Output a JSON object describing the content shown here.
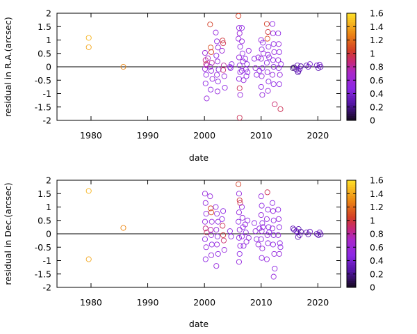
{
  "chart_data": [
    {
      "type": "scatter",
      "xlabel": "date",
      "ylabel": "residual in R.A.(arcsec)",
      "xlim": [
        1974,
        2024
      ],
      "ylim": [
        -2,
        2
      ],
      "xticks": [
        1980,
        1990,
        2000,
        2010,
        2020
      ],
      "yticks": [
        -2,
        -1.5,
        -1,
        -0.5,
        0,
        0.5,
        1,
        1.5,
        2
      ],
      "zero_line": true,
      "grid": false,
      "marker": "open-circle",
      "colorbar": {
        "min": 0,
        "max": 1.6,
        "ticks": [
          0,
          0.2,
          0.4,
          0.6,
          0.8,
          1,
          1.2,
          1.4,
          1.6
        ],
        "palette": "black-purple-red-yellow",
        "placement": "right"
      },
      "points": [
        [
          1979.6,
          1.08,
          1.45
        ],
        [
          1979.6,
          0.73,
          1.4
        ],
        [
          1985.7,
          0.0,
          1.3
        ],
        [
          2000.1,
          0.52,
          0.6
        ],
        [
          2000.2,
          0.25,
          0.85
        ],
        [
          2000.3,
          0.1,
          0.95
        ],
        [
          2000.1,
          -0.08,
          0.55
        ],
        [
          2000.3,
          -0.3,
          0.5
        ],
        [
          2000.2,
          -0.62,
          0.5
        ],
        [
          2000.4,
          -1.18,
          0.55
        ],
        [
          2000.4,
          0.05,
          0.75
        ],
        [
          2000.6,
          0.32,
          0.7
        ],
        [
          2001.0,
          1.58,
          1.05
        ],
        [
          2001.1,
          0.72,
          1.1
        ],
        [
          2001.2,
          0.55,
          1.05
        ],
        [
          2001.3,
          0.15,
          0.8
        ],
        [
          2001.0,
          0.0,
          0.6
        ],
        [
          2001.2,
          -0.15,
          0.55
        ],
        [
          2001.4,
          -0.45,
          0.55
        ],
        [
          2001.1,
          -0.85,
          0.5
        ],
        [
          2002.0,
          1.28,
          0.55
        ],
        [
          2002.2,
          0.95,
          0.5
        ],
        [
          2002.4,
          0.72,
          0.55
        ],
        [
          2002.1,
          0.42,
          0.5
        ],
        [
          2002.3,
          0.2,
          0.55
        ],
        [
          2002.5,
          -0.1,
          0.5
        ],
        [
          2002.2,
          -0.3,
          0.55
        ],
        [
          2002.4,
          -0.55,
          0.5
        ],
        [
          2002.3,
          -0.92,
          0.55
        ],
        [
          2003.2,
          0.98,
          1.0
        ],
        [
          2003.3,
          0.88,
          0.95
        ],
        [
          2003.1,
          0.6,
          0.6
        ],
        [
          2003.4,
          0.05,
          0.8
        ],
        [
          2003.3,
          -0.12,
          0.9
        ],
        [
          2003.5,
          -0.35,
          0.55
        ],
        [
          2003.6,
          -0.78,
          0.5
        ],
        [
          2004.5,
          0.0,
          0.5
        ],
        [
          2004.6,
          -0.05,
          0.45
        ],
        [
          2004.8,
          0.1,
          0.5
        ],
        [
          2006.0,
          1.9,
          1.05
        ],
        [
          2006.1,
          1.45,
          0.55
        ],
        [
          2006.2,
          1.25,
          0.6
        ],
        [
          2006.0,
          1.05,
          0.55
        ],
        [
          2006.3,
          0.75,
          0.5
        ],
        [
          2006.1,
          0.35,
          0.55
        ],
        [
          2006.2,
          0.05,
          0.5
        ],
        [
          2006.3,
          -0.2,
          0.55
        ],
        [
          2006.1,
          -0.45,
          0.5
        ],
        [
          2006.2,
          -0.8,
          0.95
        ],
        [
          2006.3,
          -1.05,
          0.55
        ],
        [
          2006.2,
          -1.9,
          0.95
        ],
        [
          2006.6,
          1.45,
          0.5
        ],
        [
          2006.6,
          0.95,
          0.55
        ],
        [
          2006.7,
          0.5,
          0.5
        ],
        [
          2006.8,
          0.2,
          0.55
        ],
        [
          2006.6,
          -0.15,
          0.5
        ],
        [
          2006.9,
          -0.5,
          0.55
        ],
        [
          2007.2,
          0.3,
          0.5
        ],
        [
          2007.3,
          -0.1,
          0.55
        ],
        [
          2007.4,
          -0.35,
          0.5
        ],
        [
          2007.5,
          0.1,
          0.45
        ],
        [
          2007.8,
          0.6,
          0.55
        ],
        [
          2007.6,
          -0.2,
          0.5
        ],
        [
          2008.8,
          0.3,
          0.5
        ],
        [
          2009.0,
          -0.05,
          0.55
        ],
        [
          2009.2,
          -0.3,
          0.5
        ],
        [
          2009.5,
          0.35,
          0.55
        ],
        [
          2009.7,
          -0.15,
          0.5
        ],
        [
          2010.0,
          1.0,
          0.55
        ],
        [
          2010.1,
          0.65,
          0.5
        ],
        [
          2010.0,
          0.3,
          0.55
        ],
        [
          2010.2,
          -0.05,
          0.5
        ],
        [
          2010.1,
          -0.35,
          0.55
        ],
        [
          2010.0,
          -0.75,
          0.5
        ],
        [
          2010.2,
          -1.05,
          0.55
        ],
        [
          2010.3,
          0.9,
          0.5
        ],
        [
          2010.4,
          0.5,
          0.55
        ],
        [
          2011.0,
          1.6,
          1.05
        ],
        [
          2011.2,
          1.3,
          1.0
        ],
        [
          2011.1,
          1.05,
          1.1
        ],
        [
          2011.3,
          0.75,
          0.5
        ],
        [
          2011.2,
          0.45,
          0.55
        ],
        [
          2011.0,
          0.15,
          0.5
        ],
        [
          2011.1,
          -0.2,
          0.55
        ],
        [
          2011.3,
          -0.55,
          0.5
        ],
        [
          2011.2,
          -0.9,
          0.55
        ],
        [
          2011.4,
          0.35,
          0.5
        ],
        [
          2012.0,
          1.6,
          0.5
        ],
        [
          2012.1,
          1.25,
          0.55
        ],
        [
          2012.2,
          0.85,
          0.5
        ],
        [
          2012.3,
          0.55,
          0.55
        ],
        [
          2012.1,
          0.25,
          0.5
        ],
        [
          2012.2,
          0.0,
          0.45
        ],
        [
          2012.0,
          -0.3,
          0.55
        ],
        [
          2012.2,
          -0.65,
          0.5
        ],
        [
          2012.4,
          -1.4,
          0.9
        ],
        [
          2013.0,
          1.25,
          0.5
        ],
        [
          2013.1,
          0.85,
          0.55
        ],
        [
          2013.2,
          0.55,
          0.5
        ],
        [
          2013.0,
          0.25,
          0.55
        ],
        [
          2013.1,
          -0.05,
          0.5
        ],
        [
          2013.3,
          -0.3,
          0.55
        ],
        [
          2013.2,
          -0.65,
          0.5
        ],
        [
          2013.4,
          -1.58,
          0.95
        ],
        [
          2013.5,
          0.1,
          0.5
        ],
        [
          2015.6,
          -0.05,
          0.15
        ],
        [
          2015.8,
          -0.02,
          0.2
        ],
        [
          2016.2,
          -0.1,
          0.3
        ],
        [
          2016.4,
          0.05,
          0.35
        ],
        [
          2016.6,
          -0.15,
          0.4
        ],
        [
          2016.8,
          -0.08,
          0.35
        ],
        [
          2017.0,
          0.02,
          0.3
        ],
        [
          2016.5,
          -0.2,
          0.25
        ],
        [
          2018.0,
          0.05,
          0.3
        ],
        [
          2018.3,
          0.0,
          0.35
        ],
        [
          2018.6,
          0.1,
          0.4
        ],
        [
          2019.8,
          0.05,
          0.35
        ],
        [
          2020.1,
          -0.05,
          0.3
        ],
        [
          2020.3,
          0.08,
          0.4
        ],
        [
          2020.5,
          0.0,
          0.35
        ]
      ]
    },
    {
      "type": "scatter",
      "xlabel": "date",
      "ylabel": "residual in Dec.(arcsec)",
      "xlim": [
        1974,
        2024
      ],
      "ylim": [
        -2,
        2
      ],
      "xticks": [
        1980,
        1990,
        2000,
        2010,
        2020
      ],
      "yticks": [
        -2,
        -1.5,
        -1,
        -0.5,
        0,
        0.5,
        1,
        1.5,
        2
      ],
      "zero_line": true,
      "grid": false,
      "marker": "open-circle",
      "colorbar": {
        "min": 0,
        "max": 1.6,
        "ticks": [
          0,
          0.2,
          0.4,
          0.6,
          0.8,
          1,
          1.2,
          1.4,
          1.6
        ],
        "palette": "black-purple-red-yellow",
        "placement": "right"
      },
      "points": [
        [
          1979.6,
          1.6,
          1.45
        ],
        [
          1979.6,
          -0.95,
          1.4
        ],
        [
          1985.7,
          0.22,
          1.3
        ],
        [
          2000.1,
          1.5,
          0.55
        ],
        [
          2000.2,
          1.15,
          0.55
        ],
        [
          2000.3,
          0.75,
          0.5
        ],
        [
          2000.1,
          0.45,
          0.55
        ],
        [
          2000.2,
          0.2,
          0.85
        ],
        [
          2000.4,
          0.05,
          0.95
        ],
        [
          2000.1,
          -0.2,
          0.5
        ],
        [
          2000.3,
          -0.5,
          0.55
        ],
        [
          2000.2,
          -0.95,
          0.5
        ],
        [
          2001.0,
          1.4,
          0.55
        ],
        [
          2001.1,
          0.95,
          1.05
        ],
        [
          2001.2,
          0.8,
          1.1
        ],
        [
          2001.3,
          0.45,
          0.55
        ],
        [
          2001.1,
          0.15,
          0.8
        ],
        [
          2001.2,
          -0.05,
          0.55
        ],
        [
          2001.3,
          -0.4,
          0.5
        ],
        [
          2001.2,
          -0.8,
          0.55
        ],
        [
          2002.0,
          1.0,
          0.5
        ],
        [
          2002.2,
          0.75,
          0.55
        ],
        [
          2002.4,
          0.45,
          0.5
        ],
        [
          2002.1,
          0.15,
          0.55
        ],
        [
          2002.3,
          -0.1,
          0.5
        ],
        [
          2002.2,
          -0.4,
          0.55
        ],
        [
          2002.4,
          -0.75,
          0.5
        ],
        [
          2002.1,
          -1.2,
          0.55
        ],
        [
          2003.2,
          0.3,
          0.95
        ],
        [
          2003.3,
          -0.05,
          1.0
        ],
        [
          2003.1,
          0.55,
          0.5
        ],
        [
          2003.4,
          -0.25,
          0.9
        ],
        [
          2003.5,
          -0.6,
          0.55
        ],
        [
          2003.3,
          0.85,
          0.5
        ],
        [
          2004.5,
          0.1,
          0.5
        ],
        [
          2004.7,
          -0.1,
          0.5
        ],
        [
          2006.0,
          1.85,
          1.05
        ],
        [
          2006.1,
          1.5,
          0.55
        ],
        [
          2006.2,
          1.25,
          1.0
        ],
        [
          2006.3,
          1.15,
          0.95
        ],
        [
          2006.1,
          0.8,
          0.55
        ],
        [
          2006.0,
          0.45,
          0.5
        ],
        [
          2006.2,
          0.15,
          0.55
        ],
        [
          2006.1,
          -0.15,
          0.5
        ],
        [
          2006.3,
          -0.45,
          0.55
        ],
        [
          2006.2,
          -0.75,
          0.5
        ],
        [
          2006.1,
          -1.05,
          0.55
        ],
        [
          2006.6,
          1.0,
          0.5
        ],
        [
          2006.7,
          0.6,
          0.55
        ],
        [
          2006.8,
          0.25,
          0.5
        ],
        [
          2006.6,
          -0.1,
          0.55
        ],
        [
          2006.9,
          -0.45,
          0.5
        ],
        [
          2007.2,
          0.35,
          0.55
        ],
        [
          2007.3,
          0.05,
          0.5
        ],
        [
          2007.4,
          -0.3,
          0.55
        ],
        [
          2007.6,
          0.5,
          0.5
        ],
        [
          2007.8,
          -0.15,
          0.55
        ],
        [
          2008.8,
          0.4,
          0.5
        ],
        [
          2009.0,
          0.1,
          0.55
        ],
        [
          2009.2,
          -0.2,
          0.5
        ],
        [
          2009.5,
          -0.4,
          0.55
        ],
        [
          2009.7,
          0.2,
          0.5
        ],
        [
          2010.0,
          1.4,
          0.55
        ],
        [
          2010.1,
          1.05,
          0.5
        ],
        [
          2010.0,
          0.7,
          0.55
        ],
        [
          2010.2,
          0.4,
          0.5
        ],
        [
          2010.1,
          0.1,
          0.55
        ],
        [
          2010.0,
          -0.2,
          0.5
        ],
        [
          2010.2,
          -0.55,
          0.55
        ],
        [
          2010.1,
          -0.9,
          0.5
        ],
        [
          2010.3,
          0.25,
          0.55
        ],
        [
          2011.1,
          1.55,
          0.95
        ],
        [
          2011.2,
          0.9,
          0.5
        ],
        [
          2011.0,
          0.55,
          0.55
        ],
        [
          2011.3,
          0.25,
          0.5
        ],
        [
          2011.1,
          -0.05,
          0.55
        ],
        [
          2011.2,
          -0.35,
          0.5
        ],
        [
          2011.0,
          -0.95,
          0.55
        ],
        [
          2011.4,
          0.05,
          0.5
        ],
        [
          2012.0,
          1.15,
          0.5
        ],
        [
          2012.1,
          0.85,
          0.55
        ],
        [
          2012.2,
          0.5,
          0.5
        ],
        [
          2012.0,
          0.2,
          0.55
        ],
        [
          2012.2,
          -0.05,
          0.45
        ],
        [
          2012.1,
          -0.4,
          0.5
        ],
        [
          2012.3,
          -0.75,
          0.55
        ],
        [
          2012.4,
          -1.3,
          0.5
        ],
        [
          2012.2,
          -1.6,
          0.55
        ],
        [
          2013.0,
          0.9,
          0.5
        ],
        [
          2013.1,
          0.55,
          0.55
        ],
        [
          2013.2,
          0.25,
          0.5
        ],
        [
          2013.0,
          -0.05,
          0.55
        ],
        [
          2013.3,
          -0.35,
          0.5
        ],
        [
          2013.2,
          -0.75,
          0.55
        ],
        [
          2013.4,
          -0.5,
          0.5
        ],
        [
          2015.6,
          0.2,
          0.35
        ],
        [
          2015.8,
          0.15,
          0.3
        ],
        [
          2016.2,
          0.1,
          0.35
        ],
        [
          2016.4,
          0.05,
          0.4
        ],
        [
          2016.6,
          0.18,
          0.3
        ],
        [
          2016.8,
          -0.05,
          0.35
        ],
        [
          2017.0,
          0.08,
          0.25
        ],
        [
          2016.5,
          -0.12,
          0.3
        ],
        [
          2018.0,
          0.05,
          0.35
        ],
        [
          2018.3,
          -0.02,
          0.3
        ],
        [
          2018.6,
          0.08,
          0.35
        ],
        [
          2019.8,
          0.0,
          0.35
        ],
        [
          2020.1,
          -0.05,
          0.3
        ],
        [
          2020.3,
          0.05,
          0.35
        ],
        [
          2020.5,
          -0.02,
          0.3
        ]
      ]
    }
  ]
}
